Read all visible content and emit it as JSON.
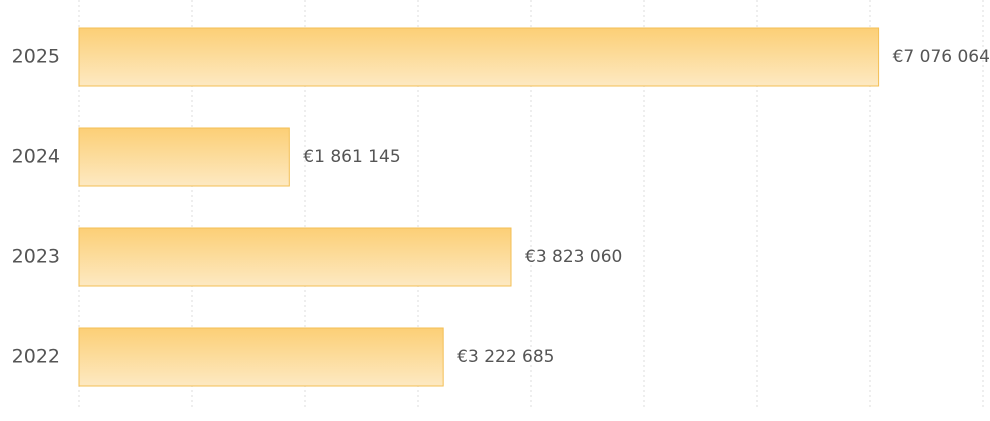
{
  "chart_data": {
    "type": "bar",
    "orientation": "horizontal",
    "categories": [
      "2025",
      "2024",
      "2023",
      "2022"
    ],
    "values": [
      7076064,
      1861145,
      3823060,
      3222685
    ],
    "value_labels": [
      "€7 076 064",
      "€1 861 145",
      "€3 823 060",
      "€3 222 685"
    ],
    "color": "#fccf76",
    "xlim": [
      0,
      8000000
    ],
    "xticks": [
      0,
      1000000,
      2000000,
      3000000,
      4000000,
      5000000,
      6000000,
      7000000,
      8000000
    ],
    "grid": true
  }
}
